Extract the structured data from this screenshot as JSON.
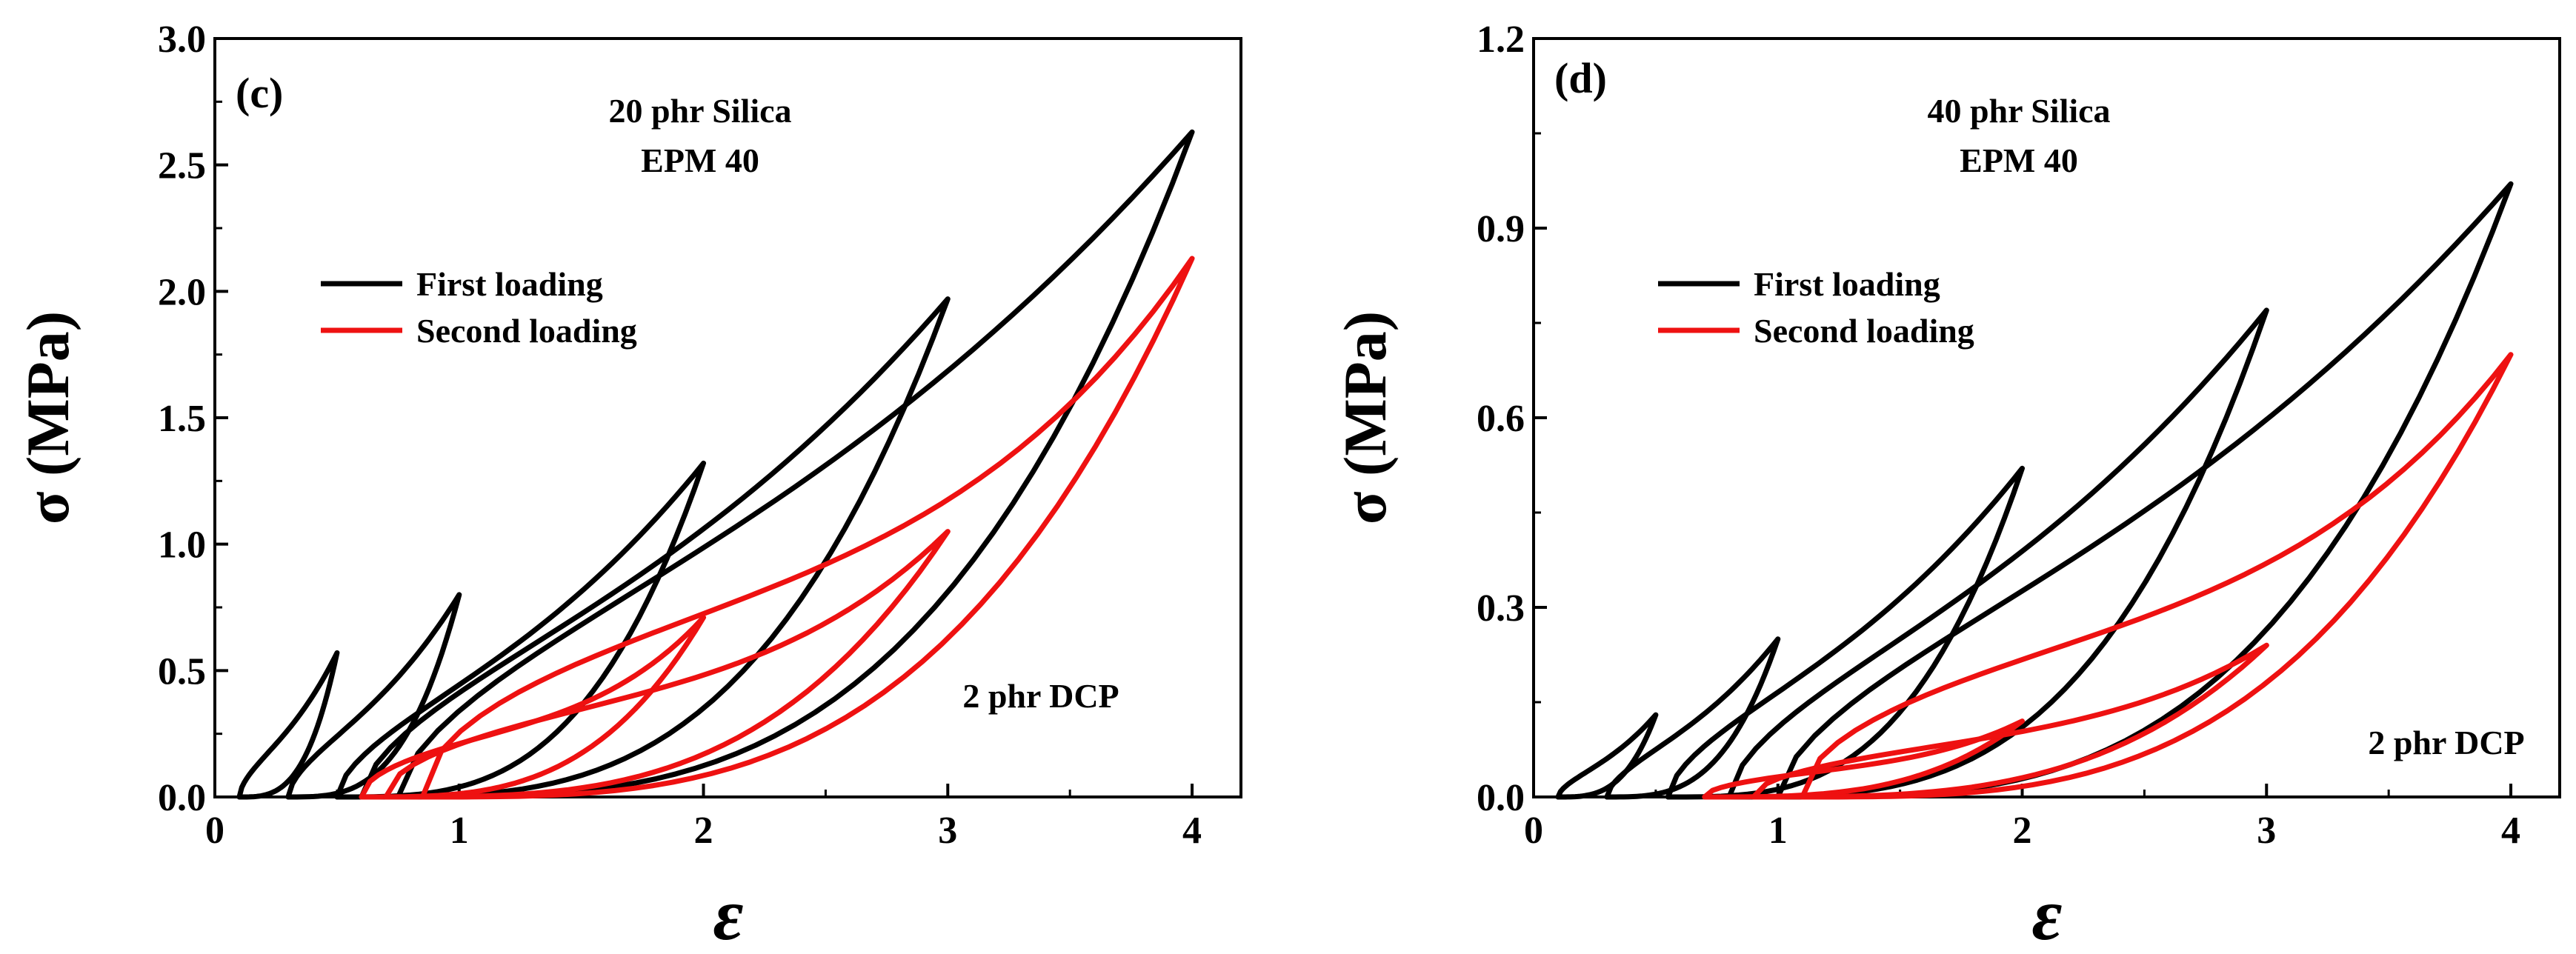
{
  "colors": {
    "first": "#000000",
    "second": "#ee1111"
  },
  "chart_data": [
    {
      "type": "line",
      "panel_label": "(c)",
      "title_lines": [
        "20 phr Silica",
        "EPM 40"
      ],
      "annotation": "2 phr DCP",
      "xlabel": "ε",
      "ylabel": "σ (MPa)",
      "xlim": [
        0,
        4.2
      ],
      "ylim": [
        0,
        3.0
      ],
      "xticks": [
        0,
        1,
        2,
        3,
        4
      ],
      "xtick_labels": [
        "0",
        "1",
        "2",
        "3",
        "4"
      ],
      "yticks": [
        0,
        0.5,
        1.0,
        1.5,
        2.0,
        2.5,
        3.0
      ],
      "ytick_labels": [
        "0.0",
        "0.5",
        "1.0",
        "1.5",
        "2.0",
        "2.5",
        "3.0"
      ],
      "legend": {
        "position": "upper-left",
        "entries": [
          "First loading",
          "Second loading"
        ]
      },
      "series": [
        {
          "name": "First loading",
          "color_key": "first",
          "cycles": [
            {
              "peak_strain": 0.5,
              "peak_stress": 0.57,
              "unload_zero_strain": 0.1
            },
            {
              "peak_strain": 1.0,
              "peak_stress": 0.8,
              "unload_zero_strain": 0.3
            },
            {
              "peak_strain": 2.0,
              "peak_stress": 1.32,
              "unload_zero_strain": 0.5
            },
            {
              "peak_strain": 3.0,
              "peak_stress": 1.97,
              "unload_zero_strain": 0.6
            },
            {
              "peak_strain": 4.0,
              "peak_stress": 2.63,
              "unload_zero_strain": 0.75
            }
          ]
        },
        {
          "name": "Second loading",
          "color_key": "second",
          "cycles": [
            {
              "peak_strain": 2.0,
              "peak_stress": 0.71,
              "unload_zero_strain": 0.6
            },
            {
              "peak_strain": 3.0,
              "peak_stress": 1.05,
              "unload_zero_strain": 0.7
            },
            {
              "peak_strain": 4.0,
              "peak_stress": 2.13,
              "unload_zero_strain": 0.85
            }
          ]
        }
      ]
    },
    {
      "type": "line",
      "panel_label": "(d)",
      "title_lines": [
        "40 phr Silica",
        "EPM  40"
      ],
      "annotation": "2 phr DCP",
      "xlabel": "ε",
      "ylabel": "σ (MPa)",
      "xlim": [
        0,
        4.2
      ],
      "ylim": [
        0,
        1.2
      ],
      "xticks": [
        0,
        1,
        2,
        3,
        4
      ],
      "xtick_labels": [
        "0",
        "1",
        "2",
        "3",
        "4"
      ],
      "yticks": [
        0,
        0.3,
        0.6,
        0.9,
        1.2
      ],
      "ytick_labels": [
        "0.0",
        "0.3",
        "0.6",
        "0.9",
        "1.2"
      ],
      "legend": {
        "position": "upper-left",
        "entries": [
          "First loading",
          "Second loading"
        ]
      },
      "series": [
        {
          "name": "First loading",
          "color_key": "first",
          "cycles": [
            {
              "peak_strain": 0.5,
              "peak_stress": 0.13,
              "unload_zero_strain": 0.1
            },
            {
              "peak_strain": 1.0,
              "peak_stress": 0.25,
              "unload_zero_strain": 0.3
            },
            {
              "peak_strain": 2.0,
              "peak_stress": 0.52,
              "unload_zero_strain": 0.55
            },
            {
              "peak_strain": 3.0,
              "peak_stress": 0.77,
              "unload_zero_strain": 0.8
            },
            {
              "peak_strain": 4.0,
              "peak_stress": 0.97,
              "unload_zero_strain": 1.0
            }
          ]
        },
        {
          "name": "Second loading",
          "color_key": "second",
          "cycles": [
            {
              "peak_strain": 2.0,
              "peak_stress": 0.12,
              "unload_zero_strain": 0.7
            },
            {
              "peak_strain": 3.0,
              "peak_stress": 0.24,
              "unload_zero_strain": 0.9
            },
            {
              "peak_strain": 4.0,
              "peak_stress": 0.7,
              "unload_zero_strain": 1.1
            }
          ]
        }
      ]
    }
  ]
}
